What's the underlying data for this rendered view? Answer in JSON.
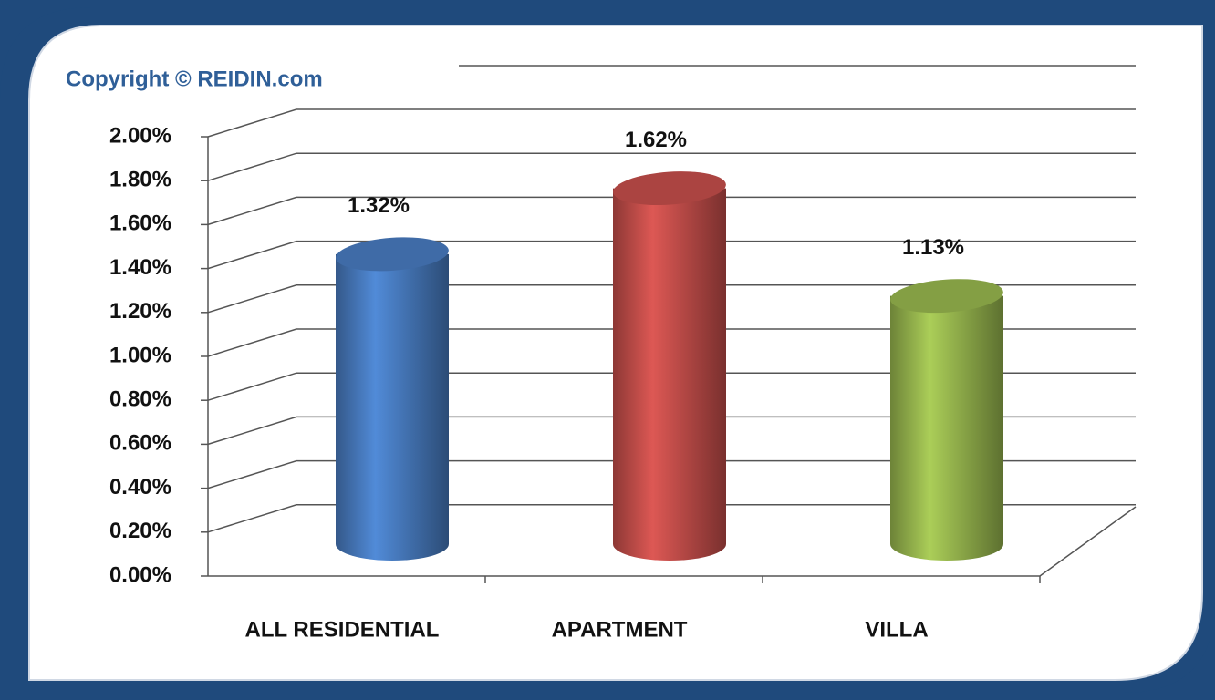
{
  "chart_data": {
    "type": "bar",
    "annotation": "Copyright © REIDIN.com",
    "categories": [
      "ALL RESIDENTIAL",
      "APARTMENT",
      "VILLA"
    ],
    "values": [
      1.32,
      1.62,
      1.13
    ],
    "value_labels": [
      "1.32%",
      "1.62%",
      "1.13%"
    ],
    "colors": [
      "#4a7ec4",
      "#c9504c",
      "#9bbb50"
    ],
    "ylim": [
      0,
      2
    ],
    "yticks": [
      {
        "value": 0,
        "label": "0.00%"
      },
      {
        "value": 0.2,
        "label": "0.20%"
      },
      {
        "value": 0.4,
        "label": "0.40%"
      },
      {
        "value": 0.6,
        "label": "0.60%"
      },
      {
        "value": 0.8,
        "label": "0.80%"
      },
      {
        "value": 1,
        "label": "1.00%"
      },
      {
        "value": 1.2,
        "label": "1.20%"
      },
      {
        "value": 1.4,
        "label": "1.40%"
      },
      {
        "value": 1.6,
        "label": "1.60%"
      },
      {
        "value": 1.8,
        "label": "1.80%"
      },
      {
        "value": 2,
        "label": "2.00%"
      }
    ],
    "grid": true
  }
}
